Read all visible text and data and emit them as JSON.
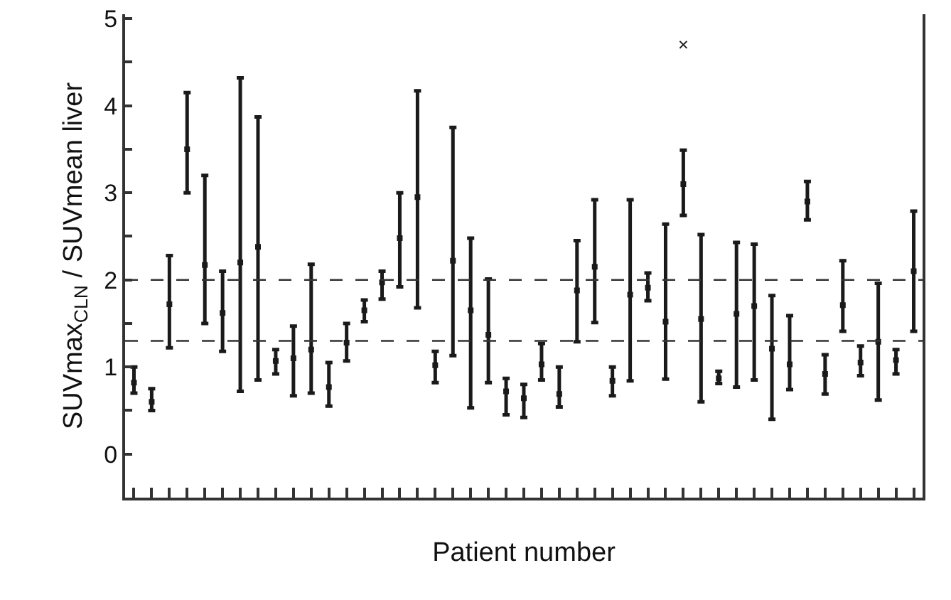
{
  "chart_data": {
    "type": "scatter",
    "xlabel": "Patient number",
    "ylabel": "SUVmax$_{CLN}$ / SUVmean liver",
    "categories": [
      null,
      null,
      null,
      null,
      null,
      null,
      null,
      null,
      null,
      null,
      null,
      null,
      null,
      null,
      null,
      null,
      null,
      null,
      null,
      null,
      null,
      null,
      null,
      null,
      null,
      null,
      null,
      null,
      null,
      null,
      null,
      null,
      null,
      null,
      null,
      null,
      null,
      null,
      null,
      null,
      null,
      null,
      null,
      null,
      null
    ],
    "series": [
      {
        "color": "#1a1a1a",
        "marker": "square",
        "values": [
          0.82,
          0.6,
          1.72,
          3.5,
          2.17,
          1.62,
          2.2,
          2.38,
          1.07,
          1.1,
          1.2,
          0.77,
          1.28,
          1.65,
          1.97,
          2.48,
          2.95,
          1.02,
          2.22,
          1.65,
          1.37,
          0.72,
          0.64,
          1.03,
          0.69,
          1.88,
          2.15,
          0.84,
          1.83,
          1.91,
          1.52,
          3.1,
          1.55,
          0.87,
          1.61,
          1.7,
          1.21,
          1.03,
          2.9,
          0.92,
          1.71,
          1.05,
          1.29,
          1.08,
          2.1
        ],
        "errors": [
          [
            0.7,
            1.0
          ],
          [
            0.5,
            0.75
          ],
          [
            1.22,
            2.28
          ],
          [
            3.0,
            4.15
          ],
          [
            1.5,
            3.2
          ],
          [
            1.18,
            2.1
          ],
          [
            0.72,
            4.32
          ],
          [
            0.85,
            3.87
          ],
          [
            0.92,
            1.2
          ],
          [
            0.67,
            1.47
          ],
          [
            0.7,
            2.18
          ],
          [
            0.55,
            1.05
          ],
          [
            1.07,
            1.5
          ],
          [
            1.52,
            1.77
          ],
          [
            1.78,
            2.1
          ],
          [
            1.92,
            3.0
          ],
          [
            1.68,
            4.17
          ],
          [
            0.82,
            1.18
          ],
          [
            1.13,
            3.75
          ],
          [
            0.53,
            2.48
          ],
          [
            0.82,
            2.01
          ],
          [
            0.45,
            0.87
          ],
          [
            0.42,
            0.8
          ],
          [
            0.85,
            1.27
          ],
          [
            0.54,
            1.0
          ],
          [
            1.29,
            2.45
          ],
          [
            1.51,
            2.92
          ],
          [
            0.67,
            1.0
          ],
          [
            0.84,
            2.92
          ],
          [
            1.76,
            2.08
          ],
          [
            0.86,
            2.64
          ],
          [
            2.74,
            3.49
          ],
          [
            0.6,
            2.52
          ],
          [
            0.81,
            0.95
          ],
          [
            0.77,
            2.43
          ],
          [
            0.85,
            2.41
          ],
          [
            0.4,
            1.82
          ],
          [
            0.74,
            1.59
          ],
          [
            2.69,
            3.13
          ],
          [
            0.69,
            1.14
          ],
          [
            1.41,
            2.22
          ],
          [
            0.9,
            1.24
          ],
          [
            0.62,
            1.96
          ],
          [
            0.92,
            1.2
          ],
          [
            1.41,
            2.79
          ]
        ]
      },
      {
        "color": "#1a1a1a",
        "marker": "cross",
        "values": [
          null,
          null,
          null,
          null,
          null,
          null,
          null,
          null,
          null,
          null,
          null,
          null,
          null,
          null,
          null,
          null,
          null,
          null,
          null,
          null,
          null,
          null,
          null,
          null,
          null,
          null,
          null,
          null,
          null,
          null,
          null,
          4.7,
          null,
          null,
          null,
          null,
          null,
          null,
          null,
          null,
          null,
          null,
          null,
          null,
          null
        ]
      }
    ],
    "ylim": [
      -0.5,
      5.05
    ],
    "yticks": [
      {
        "value": -0.5,
        "label": null
      },
      0,
      {
        "value": 0.5,
        "label": null
      },
      1,
      {
        "value": 1.5,
        "label": null
      },
      2,
      {
        "value": 2.5,
        "label": null
      },
      3,
      {
        "value": 3.5,
        "label": null
      },
      4,
      {
        "value": 4.5,
        "label": null
      },
      5
    ],
    "tick_labels": "y",
    "grid": false,
    "ref_lines": [
      {
        "axis": "y",
        "value": 2,
        "line_style": "dashed",
        "color": "#333333"
      },
      {
        "axis": "y",
        "value": 1.3,
        "line_style": "dashed",
        "color": "#333333"
      }
    ]
  }
}
